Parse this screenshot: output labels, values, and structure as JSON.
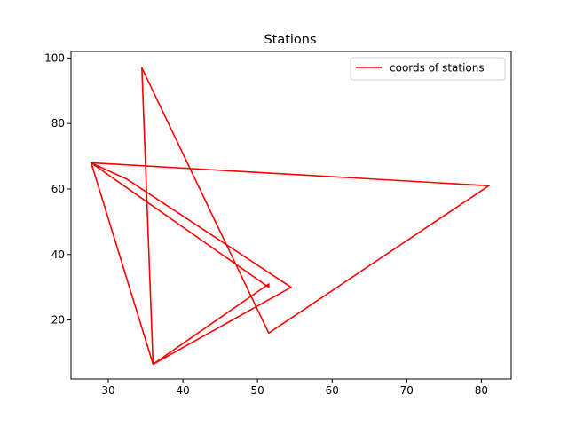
{
  "chart_data": {
    "type": "line",
    "title": "Stations",
    "xlabel": "",
    "ylabel": "",
    "xlim": [
      25,
      84
    ],
    "ylim": [
      2,
      102
    ],
    "xticks": [
      30,
      40,
      50,
      60,
      70,
      80
    ],
    "yticks": [
      20,
      40,
      60,
      80,
      100
    ],
    "grid": false,
    "legend_position": "top-right",
    "series": [
      {
        "name": "coords of stations",
        "color": "#ff0000",
        "x": [
          36,
          51.5,
          51.5,
          27.7,
          32.5,
          54.5,
          36,
          34.5,
          51.5,
          81,
          27.7,
          36
        ],
        "y": [
          6.5,
          31,
          30,
          68,
          63,
          30,
          6.5,
          97,
          16,
          61,
          68,
          6.5
        ]
      }
    ]
  }
}
